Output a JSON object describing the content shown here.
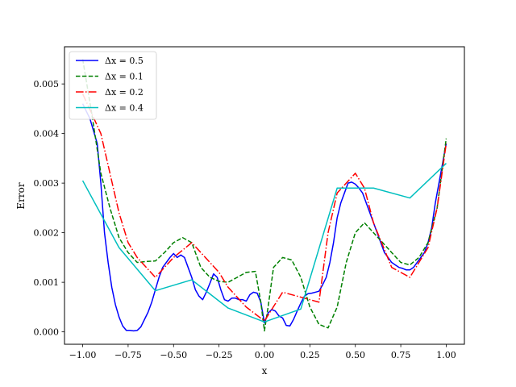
{
  "chart_data": {
    "type": "line",
    "title": "",
    "xlabel": "x",
    "ylabel": "Error",
    "xlim": [
      -1.1,
      1.1
    ],
    "ylim": [
      -0.00025,
      0.00575
    ],
    "grid": false,
    "legend_position": "top-left",
    "xticks": [
      -1.0,
      -0.75,
      -0.5,
      -0.25,
      0.0,
      0.25,
      0.5,
      0.75,
      1.0
    ],
    "xtick_labels": [
      "−1.00",
      "−0.75",
      "−0.50",
      "−0.25",
      "0.00",
      "0.25",
      "0.50",
      "0.75",
      "1.00"
    ],
    "yticks": [
      0.0,
      0.001,
      0.002,
      0.003,
      0.004,
      0.005
    ],
    "ytick_labels": [
      "0.000",
      "0.001",
      "0.002",
      "0.003",
      "0.004",
      "0.005"
    ],
    "series": [
      {
        "name": "Δx = 0.5",
        "color": "#0000ff",
        "style": "solid",
        "x": [
          -1.0,
          -0.96,
          -0.92,
          -0.9,
          -0.88,
          -0.86,
          -0.84,
          -0.82,
          -0.8,
          -0.78,
          -0.76,
          -0.74,
          -0.72,
          -0.7,
          -0.68,
          -0.66,
          -0.64,
          -0.62,
          -0.6,
          -0.58,
          -0.56,
          -0.54,
          -0.52,
          -0.5,
          -0.48,
          -0.46,
          -0.44,
          -0.42,
          -0.4,
          -0.38,
          -0.36,
          -0.34,
          -0.32,
          -0.3,
          -0.28,
          -0.26,
          -0.24,
          -0.22,
          -0.2,
          -0.18,
          -0.16,
          -0.14,
          -0.12,
          -0.1,
          -0.08,
          -0.06,
          -0.04,
          -0.02,
          0.0,
          0.02,
          0.04,
          0.06,
          0.08,
          0.1,
          0.12,
          0.14,
          0.16,
          0.18,
          0.2,
          0.22,
          0.24,
          0.26,
          0.28,
          0.3,
          0.32,
          0.34,
          0.36,
          0.38,
          0.4,
          0.42,
          0.44,
          0.46,
          0.48,
          0.5,
          0.52,
          0.54,
          0.56,
          0.58,
          0.6,
          0.62,
          0.64,
          0.66,
          0.68,
          0.7,
          0.72,
          0.74,
          0.76,
          0.78,
          0.8,
          0.82,
          0.84,
          0.86,
          0.88,
          0.9,
          0.92,
          0.94,
          0.96,
          0.98,
          1.0
        ],
        "y": [
          0.0046,
          0.0043,
          0.0038,
          0.003,
          0.002,
          0.0014,
          0.0009,
          0.00055,
          0.0003,
          0.00012,
          3e-05,
          3e-05,
          2e-05,
          3e-05,
          0.0001,
          0.00025,
          0.0004,
          0.0006,
          0.00085,
          0.0011,
          0.0013,
          0.0014,
          0.0015,
          0.00158,
          0.0015,
          0.00155,
          0.0015,
          0.0013,
          0.0011,
          0.00085,
          0.00072,
          0.00065,
          0.0008,
          0.00098,
          0.00117,
          0.0011,
          0.00085,
          0.00065,
          0.00062,
          0.00068,
          0.00068,
          0.00065,
          0.00065,
          0.00062,
          0.00075,
          0.0008,
          0.00078,
          0.0006,
          0.00018,
          0.00038,
          0.00045,
          0.00042,
          0.00032,
          0.00028,
          0.00013,
          0.00012,
          0.00025,
          0.00042,
          0.00058,
          0.00072,
          0.00077,
          0.00078,
          0.0008,
          0.00082,
          0.00095,
          0.0011,
          0.0014,
          0.0018,
          0.0023,
          0.0026,
          0.0028,
          0.003,
          0.00302,
          0.00298,
          0.0029,
          0.0028,
          0.0026,
          0.0024,
          0.0022,
          0.002,
          0.0018,
          0.0016,
          0.0015,
          0.0014,
          0.00135,
          0.0013,
          0.00128,
          0.00125,
          0.00125,
          0.0013,
          0.0014,
          0.0015,
          0.0016,
          0.0018,
          0.0021,
          0.0026,
          0.003,
          0.0034,
          0.0038
        ]
      },
      {
        "name": "Δx = 0.1",
        "color": "#008000",
        "style": "dashed",
        "x": [
          -1.0,
          -0.95,
          -0.9,
          -0.85,
          -0.8,
          -0.75,
          -0.7,
          -0.65,
          -0.6,
          -0.55,
          -0.5,
          -0.45,
          -0.4,
          -0.35,
          -0.3,
          -0.25,
          -0.2,
          -0.15,
          -0.1,
          -0.05,
          -0.02,
          0.0,
          0.02,
          0.05,
          0.1,
          0.15,
          0.2,
          0.25,
          0.3,
          0.35,
          0.4,
          0.45,
          0.5,
          0.55,
          0.6,
          0.65,
          0.7,
          0.75,
          0.8,
          0.85,
          0.9,
          0.95,
          1.0
        ],
        "y": [
          0.0055,
          0.0044,
          0.0032,
          0.0025,
          0.0019,
          0.0016,
          0.0014,
          0.00142,
          0.00143,
          0.0016,
          0.0018,
          0.0019,
          0.0018,
          0.0013,
          0.0011,
          0.00102,
          0.001,
          0.0011,
          0.0012,
          0.00122,
          0.0006,
          2e-05,
          0.0005,
          0.0013,
          0.0015,
          0.00145,
          0.0011,
          0.0005,
          0.00015,
          8e-05,
          0.0005,
          0.0014,
          0.002,
          0.0022,
          0.002,
          0.0018,
          0.0016,
          0.0014,
          0.00135,
          0.0015,
          0.0018,
          0.0025,
          0.0039
        ]
      },
      {
        "name": "Δx = 0.2",
        "color": "#ff0000",
        "style": "dashdot",
        "x": [
          -1.0,
          -0.95,
          -0.9,
          -0.85,
          -0.8,
          -0.75,
          -0.7,
          -0.6,
          -0.5,
          -0.4,
          -0.3,
          -0.25,
          -0.2,
          -0.1,
          0.0,
          0.1,
          0.2,
          0.3,
          0.35,
          0.4,
          0.45,
          0.5,
          0.55,
          0.6,
          0.7,
          0.8,
          0.85,
          0.9,
          0.95,
          1.0
        ],
        "y": [
          0.0048,
          0.0044,
          0.004,
          0.0032,
          0.0024,
          0.0018,
          0.0015,
          0.0011,
          0.0015,
          0.0018,
          0.0014,
          0.0012,
          0.0009,
          0.0005,
          0.00022,
          0.0008,
          0.0007,
          0.0006,
          0.002,
          0.0028,
          0.003,
          0.0032,
          0.0029,
          0.0022,
          0.0013,
          0.0011,
          0.0014,
          0.0017,
          0.0025,
          0.0038
        ]
      },
      {
        "name": "Δx = 0.4",
        "color": "#00bfbf",
        "style": "solid",
        "x": [
          -1.0,
          -0.8,
          -0.6,
          -0.4,
          -0.2,
          0.0,
          0.2,
          0.4,
          0.6,
          0.8,
          1.0
        ],
        "y": [
          0.00305,
          0.0017,
          0.00083,
          0.00105,
          0.00048,
          0.0002,
          0.00046,
          0.0029,
          0.0029,
          0.0027,
          0.0034
        ]
      }
    ]
  }
}
